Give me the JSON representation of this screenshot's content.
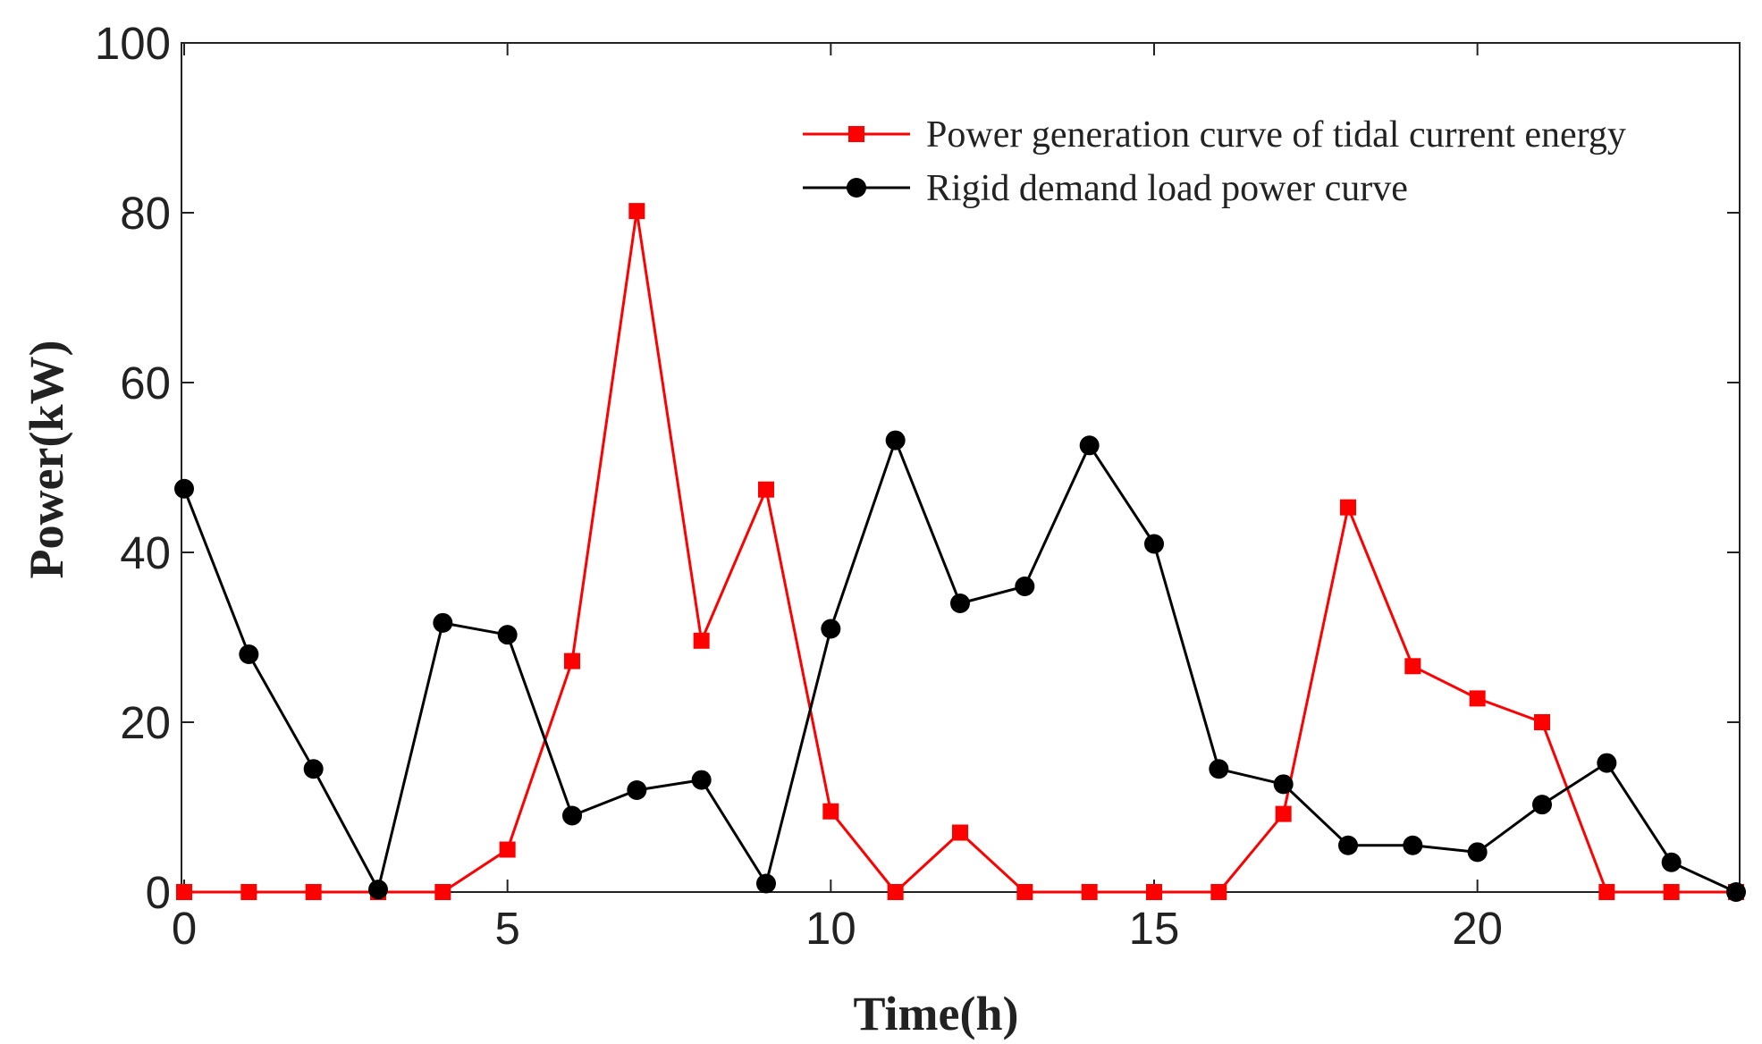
{
  "chart_data": {
    "type": "line",
    "title": "",
    "xlabel": "Time(h)",
    "ylabel": "Power(kW)",
    "xlim": [
      0,
      24
    ],
    "ylim": [
      0,
      100
    ],
    "xticks": [
      0,
      5,
      10,
      15,
      20
    ],
    "yticks": [
      0,
      20,
      40,
      60,
      80,
      100
    ],
    "grid": false,
    "legend_position": "top-right",
    "series": [
      {
        "name": "Power generation curve of tidal current energy",
        "color": "#ff0000",
        "marker": "square",
        "x": [
          0,
          1,
          2,
          3,
          4,
          5,
          6,
          7,
          8,
          9,
          10,
          11,
          12,
          13,
          14,
          15,
          16,
          17,
          18,
          19,
          20,
          21,
          22,
          23,
          24
        ],
        "y": [
          0,
          0,
          0,
          0,
          0,
          5,
          27.2,
          80.2,
          29.6,
          47.4,
          9.5,
          0,
          7,
          0,
          0,
          0,
          0,
          9.2,
          45.3,
          26.6,
          22.8,
          20,
          0,
          0,
          0
        ]
      },
      {
        "name": "Rigid demand load power curve",
        "color": "#000000",
        "marker": "circle",
        "x": [
          0,
          1,
          2,
          3,
          4,
          5,
          6,
          7,
          8,
          9,
          10,
          11,
          12,
          13,
          14,
          15,
          16,
          17,
          18,
          19,
          20,
          21,
          22,
          23,
          24
        ],
        "y": [
          47.5,
          28,
          14.5,
          0.3,
          31.7,
          30.3,
          9,
          12,
          13.2,
          1,
          31,
          53.2,
          34,
          36,
          52.6,
          41,
          14.5,
          12.7,
          5.5,
          5.5,
          4.7,
          10.3,
          15.2,
          3.5,
          0
        ]
      }
    ]
  }
}
